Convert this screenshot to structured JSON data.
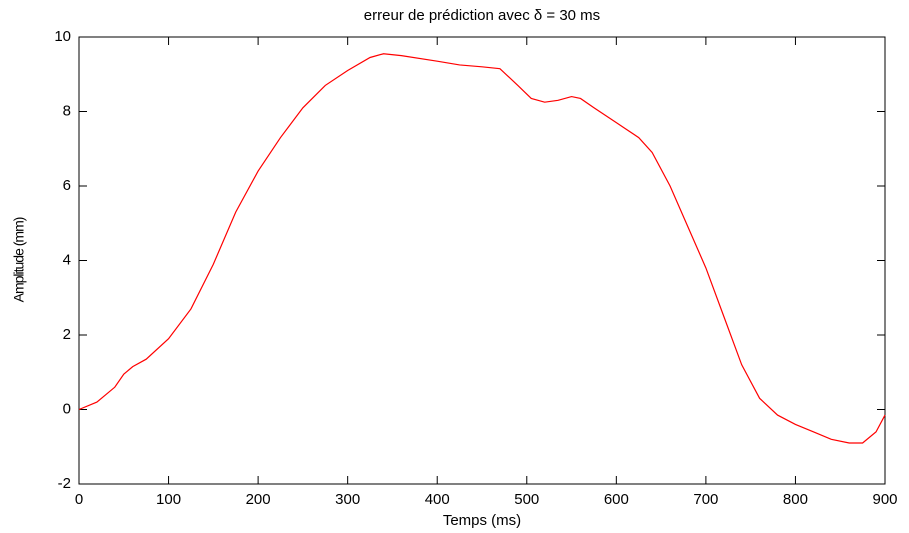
{
  "chart_data": {
    "type": "line",
    "title": "erreur de prédiction avec δ = 30 ms",
    "xlabel": "Temps (ms)",
    "ylabel": "Amplitude (mm)",
    "x": [
      0,
      20,
      40,
      50,
      60,
      75,
      100,
      125,
      150,
      175,
      200,
      225,
      250,
      275,
      300,
      325,
      340,
      360,
      400,
      425,
      450,
      470,
      490,
      505,
      520,
      535,
      550,
      560,
      575,
      600,
      625,
      640,
      660,
      680,
      700,
      720,
      740,
      760,
      780,
      800,
      820,
      840,
      860,
      875,
      890,
      900
    ],
    "values": [
      0,
      0.2,
      0.6,
      0.95,
      1.15,
      1.35,
      1.9,
      2.7,
      3.9,
      5.3,
      6.4,
      7.3,
      8.1,
      8.7,
      9.1,
      9.45,
      9.55,
      9.5,
      9.35,
      9.25,
      9.2,
      9.15,
      8.7,
      8.35,
      8.25,
      8.3,
      8.4,
      8.35,
      8.1,
      7.7,
      7.3,
      6.9,
      6.0,
      4.9,
      3.8,
      2.5,
      1.2,
      0.3,
      -0.15,
      -0.4,
      -0.6,
      -0.8,
      -0.9,
      -0.9,
      -0.6,
      -0.15
    ],
    "color": "#ff0000",
    "xlim": [
      0,
      900
    ],
    "xticks": [
      0,
      100,
      200,
      300,
      400,
      500,
      600,
      700,
      800,
      900
    ],
    "ylim": [
      -2,
      10
    ],
    "yticks": [
      -2,
      0,
      2,
      4,
      6,
      8,
      10
    ],
    "grid": false
  }
}
